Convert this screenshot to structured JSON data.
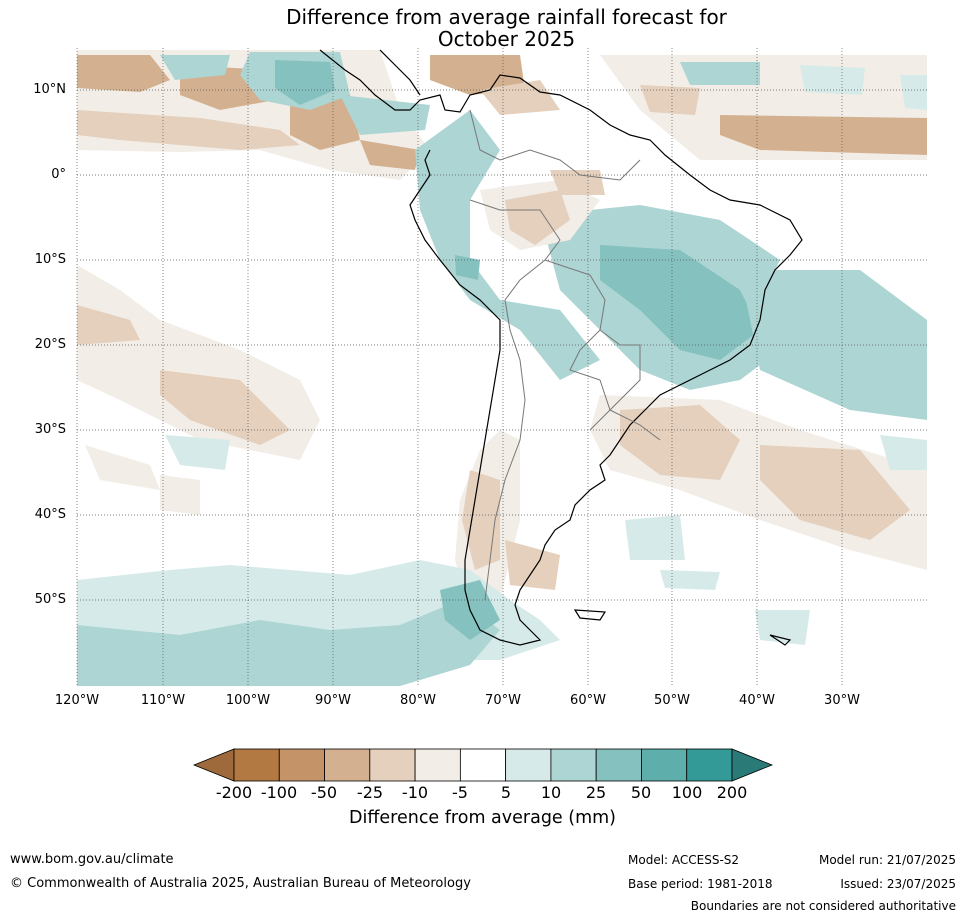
{
  "title": {
    "line1": "Difference from average rainfall forecast for",
    "line2": "October 2025"
  },
  "map": {
    "lat_labels": [
      "10°N",
      "0°",
      "10°S",
      "20°S",
      "30°S",
      "40°S",
      "50°S"
    ],
    "lon_labels": [
      "120°W",
      "110°W",
      "100°W",
      "90°W",
      "80°W",
      "70°W",
      "60°W",
      "50°W",
      "40°W",
      "30°W"
    ]
  },
  "colorbar": {
    "title": "Difference from average (mm)",
    "ticks": [
      "-200",
      "-100",
      "-50",
      "-25",
      "-10",
      "-5",
      "5",
      "10",
      "25",
      "50",
      "100",
      "200"
    ],
    "colors": [
      "#9e6a3b",
      "#b27a42",
      "#c49468",
      "#d3b08f",
      "#e4d0bc",
      "#f2ede6",
      "#ffffff",
      "#d6ebe9",
      "#acd5d3",
      "#84c1bf",
      "#5eaeab",
      "#339a97",
      "#2a7a78"
    ]
  },
  "footer": {
    "url": "www.bom.gov.au/climate",
    "copyright": "© Commonwealth of Australia 2025, Australian Bureau of Meteorology",
    "model": "Model: ACCESS-S2",
    "model_run": "Model run: 21/07/2025",
    "base_period": "Base period: 1981-2018",
    "issued": "Issued: 23/07/2025",
    "disclaimer": "Boundaries are not considered authoritative"
  }
}
